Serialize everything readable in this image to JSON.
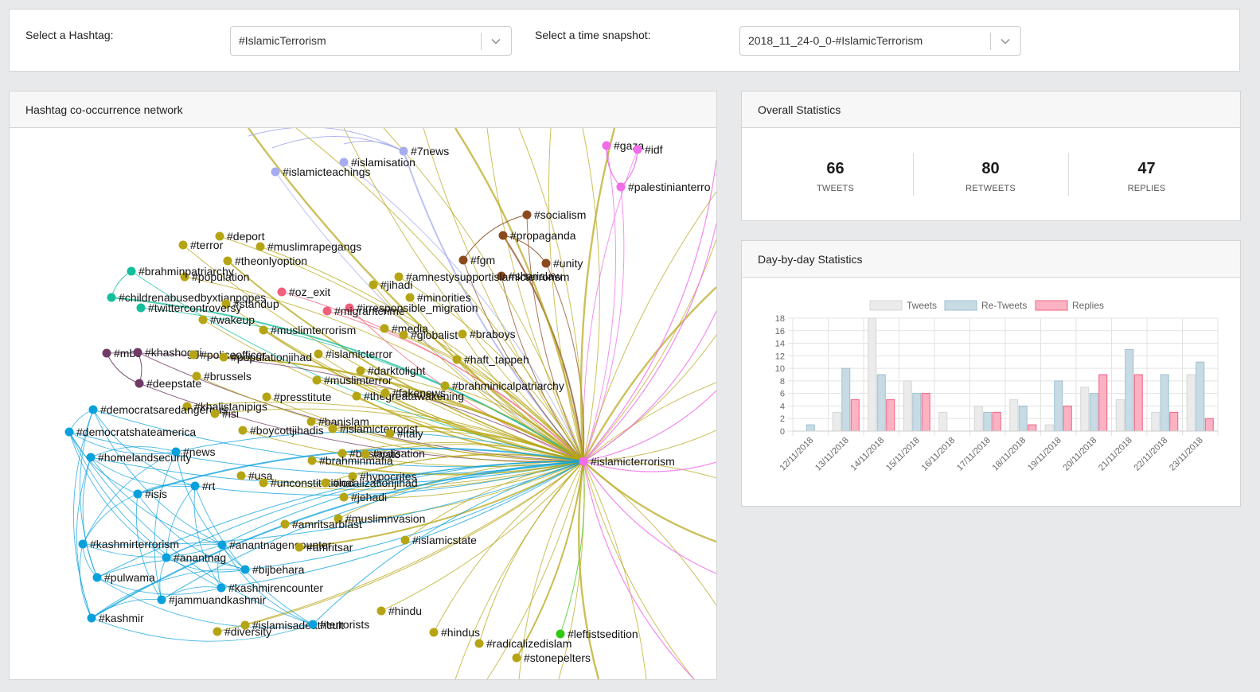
{
  "selectors": {
    "hashtag_label": "Select a Hashtag:",
    "hashtag_value": "#IslamicTerrorism",
    "snapshot_label": "Select a time snapshot:",
    "snapshot_value": "2018_11_24-0_0-#IslamicTerrorism"
  },
  "network": {
    "title": "Hashtag co-occurrence network",
    "center": "#islamicterrorism",
    "colors": {
      "olive": "#b5a514",
      "blue": "#0aa0dc",
      "lavender": "#a7acf0",
      "pink": "#f06ce8",
      "brown": "#8b4a1e",
      "red": "#f0607c",
      "teal": "#14be9a",
      "purple": "#6e3a66",
      "green": "#32c814"
    },
    "nodes": [
      {
        "label": "#7news",
        "group": "lavender"
      },
      {
        "label": "#islamisation",
        "group": "lavender"
      },
      {
        "label": "#islamicteachings",
        "group": "lavender"
      },
      {
        "label": "#gaza",
        "group": "pink"
      },
      {
        "label": "#idf",
        "group": "pink"
      },
      {
        "label": "#palestinianterro",
        "group": "pink"
      },
      {
        "label": "#socialism",
        "group": "brown"
      },
      {
        "label": "#propaganda",
        "group": "brown"
      },
      {
        "label": "#fgm",
        "group": "brown"
      },
      {
        "label": "#unity",
        "group": "brown"
      },
      {
        "label": "#sharialaw",
        "group": "brown"
      },
      {
        "label": "#deport",
        "group": "olive"
      },
      {
        "label": "#terror",
        "group": "olive"
      },
      {
        "label": "#muslimrapegangs",
        "group": "olive"
      },
      {
        "label": "#theonlyoption",
        "group": "olive"
      },
      {
        "label": "#population",
        "group": "olive"
      },
      {
        "label": "#brahminpatriarchy",
        "group": "teal"
      },
      {
        "label": "#amnestysupportislamicterrorism",
        "group": "olive"
      },
      {
        "label": "#jihadi",
        "group": "olive"
      },
      {
        "label": "#oz_exit",
        "group": "red"
      },
      {
        "label": "#minorities",
        "group": "olive"
      },
      {
        "label": "#childrenabusedbyxtianpopes",
        "group": "teal"
      },
      {
        "label": "#standup",
        "group": "olive"
      },
      {
        "label": "#twittercontroversy",
        "group": "teal"
      },
      {
        "label": "#irresponsible_migration",
        "group": "red"
      },
      {
        "label": "#migrantcrime",
        "group": "red"
      },
      {
        "label": "#wakeup",
        "group": "olive"
      },
      {
        "label": "#media",
        "group": "olive"
      },
      {
        "label": "#muslimterrorism",
        "group": "olive"
      },
      {
        "label": "#globalist",
        "group": "olive"
      },
      {
        "label": "#braboys",
        "group": "olive"
      },
      {
        "label": "#mbs",
        "group": "purple"
      },
      {
        "label": "#khashoggi",
        "group": "purple"
      },
      {
        "label": "#policeofficer",
        "group": "olive"
      },
      {
        "label": "#islamicterror",
        "group": "olive"
      },
      {
        "label": "#populationjihad",
        "group": "olive"
      },
      {
        "label": "#haft_tappeh",
        "group": "olive"
      },
      {
        "label": "#darktolight",
        "group": "olive"
      },
      {
        "label": "#brussels",
        "group": "olive"
      },
      {
        "label": "#muslimterror",
        "group": "olive"
      },
      {
        "label": "#deepstate",
        "group": "purple"
      },
      {
        "label": "#brahminicalpatriarchy",
        "group": "olive"
      },
      {
        "label": "#thegreatawakening",
        "group": "olive"
      },
      {
        "label": "#fakenews",
        "group": "olive"
      },
      {
        "label": "#presstitute",
        "group": "olive"
      },
      {
        "label": "#khalistanipigs",
        "group": "olive"
      },
      {
        "label": "#democratsaredangerous",
        "group": "blue"
      },
      {
        "label": "#isi",
        "group": "olive"
      },
      {
        "label": "#banislam",
        "group": "olive"
      },
      {
        "label": "#islamicterrorist",
        "group": "olive"
      },
      {
        "label": "#boycottjihadis",
        "group": "olive"
      },
      {
        "label": "#italy",
        "group": "olive"
      },
      {
        "label": "#democratshateamerica",
        "group": "blue"
      },
      {
        "label": "#news",
        "group": "blue"
      },
      {
        "label": "#homelandsecurity",
        "group": "blue"
      },
      {
        "label": "#bastardisation",
        "group": "olive"
      },
      {
        "label": "#brahminmafia",
        "group": "olive"
      },
      {
        "label": "#nato",
        "group": "olive"
      },
      {
        "label": "#usa",
        "group": "olive"
      },
      {
        "label": "#hypocrites",
        "group": "olive"
      },
      {
        "label": "#unconstitutional",
        "group": "olive"
      },
      {
        "label": "#localizationjihad",
        "group": "olive"
      },
      {
        "label": "#rt",
        "group": "blue"
      },
      {
        "label": "#isis",
        "group": "blue"
      },
      {
        "label": "#jehadi",
        "group": "olive"
      },
      {
        "label": "#muslimnvasion",
        "group": "olive"
      },
      {
        "label": "#amritsarblast",
        "group": "olive"
      },
      {
        "label": "#islamicstate",
        "group": "olive"
      },
      {
        "label": "#kashmirterrorism",
        "group": "blue"
      },
      {
        "label": "#anantnagencounter",
        "group": "blue"
      },
      {
        "label": "#amritsar",
        "group": "olive"
      },
      {
        "label": "#anantnag",
        "group": "blue"
      },
      {
        "label": "#bijbehara",
        "group": "blue"
      },
      {
        "label": "#pulwama",
        "group": "blue"
      },
      {
        "label": "#kashmirencounter",
        "group": "blue"
      },
      {
        "label": "#jammuandkashmir",
        "group": "blue"
      },
      {
        "label": "#hindu",
        "group": "olive"
      },
      {
        "label": "#kashmir",
        "group": "blue"
      },
      {
        "label": "#islamisadeathcult",
        "group": "olive"
      },
      {
        "label": "#terrorists",
        "group": "blue"
      },
      {
        "label": "#diversity",
        "group": "olive"
      },
      {
        "label": "#hindus",
        "group": "olive"
      },
      {
        "label": "#leftistsedition",
        "group": "green"
      },
      {
        "label": "#radicalizedislam",
        "group": "olive"
      },
      {
        "label": "#stonepelters",
        "group": "olive"
      }
    ]
  },
  "overall": {
    "title": "Overall Statistics",
    "stats": [
      {
        "value": "66",
        "label": "TWEETS"
      },
      {
        "value": "80",
        "label": "RETWEETS"
      },
      {
        "value": "47",
        "label": "REPLIES"
      }
    ]
  },
  "daily": {
    "title": "Day-by-day Statistics"
  },
  "chart_data": {
    "type": "bar",
    "title": "",
    "categories": [
      "12/11/2018",
      "13/11/2018",
      "14/11/2018",
      "15/11/2018",
      "16/11/2018",
      "17/11/2018",
      "18/11/2018",
      "19/11/2018",
      "20/11/2018",
      "21/11/2018",
      "22/11/2018",
      "23/11/2018"
    ],
    "series": [
      {
        "name": "Tweets",
        "color": "#ebebeb",
        "stroke": "#d6d6d6",
        "values": [
          0,
          3,
          18,
          8,
          3,
          4,
          5,
          1,
          7,
          5,
          3,
          9
        ]
      },
      {
        "name": "Re-Tweets",
        "color": "#c7dbe5",
        "stroke": "#9fbfcf",
        "values": [
          1,
          10,
          9,
          6,
          0,
          3,
          4,
          8,
          6,
          13,
          9,
          11
        ]
      },
      {
        "name": "Replies",
        "color": "#fbb3c4",
        "stroke": "#f06080",
        "values": [
          0,
          5,
          5,
          6,
          0,
          3,
          1,
          4,
          9,
          9,
          3,
          2
        ]
      }
    ],
    "ylim": [
      0,
      18
    ],
    "yticks": [
      0,
      2,
      4,
      6,
      8,
      10,
      12,
      14,
      16,
      18
    ],
    "legend": "top",
    "grid": true
  }
}
